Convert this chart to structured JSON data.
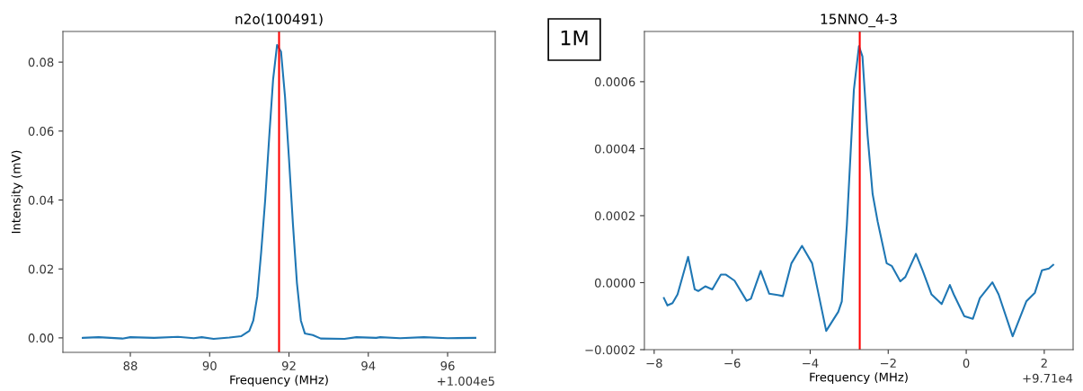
{
  "chart_data": [
    {
      "type": "line",
      "title": "n2o(100491)",
      "xlabel": "Frequency (MHz)",
      "ylabel": "Intensity (mV)",
      "annotations": [
        "+1.004e5",
        "1M"
      ],
      "xlim": [
        86.3,
        97.2
      ],
      "xticks": [
        88,
        90,
        92,
        94,
        96
      ],
      "ylim": [
        -0.0042,
        0.0889
      ],
      "yticks": [
        {
          "value": 0,
          "label": "0.00"
        },
        {
          "value": 0.02,
          "label": "0.02"
        },
        {
          "value": 0.04,
          "label": "0.04"
        },
        {
          "value": 0.06,
          "label": "0.06"
        },
        {
          "value": 0.08,
          "label": "0.08"
        }
      ],
      "grid": false,
      "legend": false,
      "ref_lines": [
        {
          "axis": "x",
          "value": 91.75,
          "color": "#ff0000"
        }
      ],
      "series": [
        {
          "color": "#1f77b4",
          "x": [
            86.8,
            87.2,
            87.8,
            88.0,
            88.6,
            89.2,
            89.6,
            89.8,
            90.1,
            90.5,
            90.8,
            91.0,
            91.1,
            91.2,
            91.3,
            91.4,
            91.5,
            91.6,
            91.7,
            91.8,
            91.9,
            92.0,
            92.1,
            92.2,
            92.3,
            92.4,
            92.6,
            92.8,
            93.4,
            93.7,
            94.2,
            94.3,
            94.8,
            95.4,
            96.0,
            96.7
          ],
          "values": [
            0,
            0.0002,
            -0.0002,
            0.0002,
            0,
            0.0003,
            -0.0001,
            0.0002,
            -0.0003,
            0.0001,
            0.0005,
            0.002,
            0.005,
            0.012,
            0.025,
            0.04,
            0.058,
            0.075,
            0.085,
            0.083,
            0.07,
            0.052,
            0.033,
            0.016,
            0.005,
            0.0013,
            0.0008,
            -0.0002,
            -0.0003,
            0.0002,
            0,
            0.0002,
            -0.0001,
            0.0002,
            -0.0001,
            0
          ]
        }
      ]
    },
    {
      "type": "line",
      "title": "15NNO_4-3",
      "xlabel": "Frequency (MHz)",
      "annotations": [
        "+9.71e4"
      ],
      "xlim": [
        -8.25,
        2.74
      ],
      "xticks": [
        {
          "value": -8,
          "label": "−8"
        },
        {
          "value": -6,
          "label": "−6"
        },
        {
          "value": -4,
          "label": "−4"
        },
        {
          "value": -2,
          "label": "−2"
        },
        0,
        2
      ],
      "ylim": [
        -0.0002,
        0.00075
      ],
      "yticks": [
        {
          "value": -0.0002,
          "label": "−0.0002"
        },
        {
          "value": 0,
          "label": "0.0000"
        },
        {
          "value": 0.0002,
          "label": "0.0002"
        },
        {
          "value": 0.0004,
          "label": "0.0004"
        },
        {
          "value": 0.0006,
          "label": "0.0006"
        }
      ],
      "grid": false,
      "legend": false,
      "ref_lines": [
        {
          "axis": "x",
          "value": -2.73,
          "color": "#ff0000"
        }
      ],
      "series": [
        {
          "color": "#1f77b4",
          "x": [
            -7.75,
            -7.66,
            -7.53,
            -7.4,
            -7.13,
            -6.96,
            -6.87,
            -6.69,
            -6.51,
            -6.29,
            -6.16,
            -5.94,
            -5.63,
            -5.52,
            -5.27,
            -5.05,
            -4.83,
            -4.7,
            -4.48,
            -4.21,
            -3.95,
            -3.59,
            -3.28,
            -3.19,
            -3.06,
            -2.88,
            -2.75,
            -2.66,
            -2.53,
            -2.4,
            -2.27,
            -2.04,
            -1.91,
            -1.69,
            -1.56,
            -1.29,
            -1.12,
            -0.89,
            -0.63,
            -0.42,
            -0.32,
            -0.05,
            0.17,
            0.35,
            0.67,
            0.83,
            1.19,
            1.54,
            1.76,
            1.94,
            2.12,
            2.23
          ],
          "values": [
            -4.6e-05,
            -6.8e-05,
            -6.1e-05,
            -3.5e-05,
            7.7e-05,
            -2e-05,
            -2.5e-05,
            -1.1e-05,
            -2e-05,
            2.4e-05,
            2.4e-05,
            6e-06,
            -5.4e-05,
            -4.8e-05,
            3.5e-05,
            -3.3e-05,
            -3.7e-05,
            -4e-05,
            5.8e-05,
            0.00011,
            5.8e-05,
            -0.000144,
            -8.7e-05,
            -5.6e-05,
            0.000172,
            0.000576,
            0.000706,
            0.000675,
            0.000441,
            0.000265,
            0.000182,
            5.8e-05,
            5e-05,
            4e-06,
            1.7e-05,
            8.6e-05,
            3.7e-05,
            -3.5e-05,
            -6.4e-05,
            -7e-06,
            -3.5e-05,
            -0.0001,
            -0.000108,
            -4.6e-05,
            1e-06,
            -3.5e-05,
            -0.00016,
            -5.6e-05,
            -3e-05,
            3.7e-05,
            4.2e-05,
            5.3e-05
          ]
        }
      ]
    }
  ]
}
